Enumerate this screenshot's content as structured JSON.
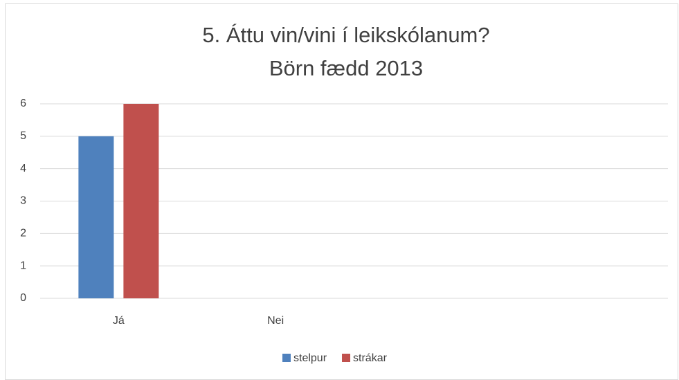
{
  "chart_data": {
    "type": "bar",
    "title": "5. Áttu vin/vini í leikskólanum?",
    "subtitle": "Börn fædd 2013",
    "categories": [
      "Já",
      "Nei",
      null,
      null
    ],
    "series": [
      {
        "name": "stelpur",
        "color": "#4f81bd",
        "values": [
          5,
          0,
          null,
          null
        ]
      },
      {
        "name": "strákar",
        "color": "#c0504d",
        "values": [
          6,
          0,
          null,
          null
        ]
      }
    ],
    "ylim": [
      0,
      6
    ],
    "yticks": [
      0,
      1,
      2,
      3,
      4,
      5,
      6
    ],
    "grid": true,
    "legend": "bottom"
  }
}
